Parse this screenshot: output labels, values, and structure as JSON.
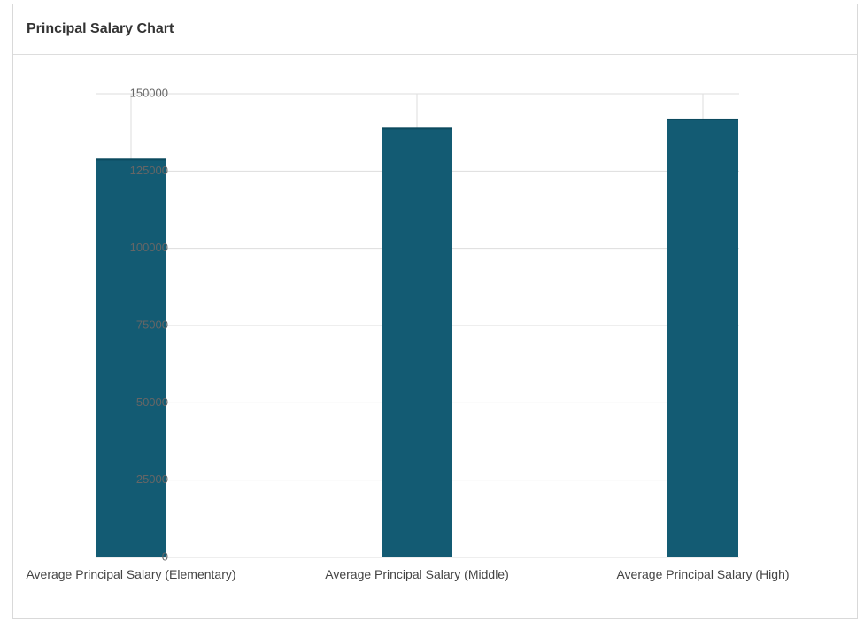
{
  "panel": {
    "title": "Principal Salary Chart"
  },
  "colors": {
    "bar": "#135b73",
    "grid": "#dddddd",
    "axis_text": "#666666",
    "category_text": "#444444"
  },
  "chart_data": {
    "type": "bar",
    "categories": [
      "Average Principal Salary (Elementary)",
      "Average Principal Salary (Middle)",
      "Average Principal Salary (High)"
    ],
    "values": [
      129000,
      139000,
      142000
    ],
    "y_ticks": [
      0,
      25000,
      50000,
      75000,
      100000,
      125000,
      150000
    ],
    "ylim": [
      0,
      150000
    ],
    "grid": true,
    "legend": "none"
  }
}
